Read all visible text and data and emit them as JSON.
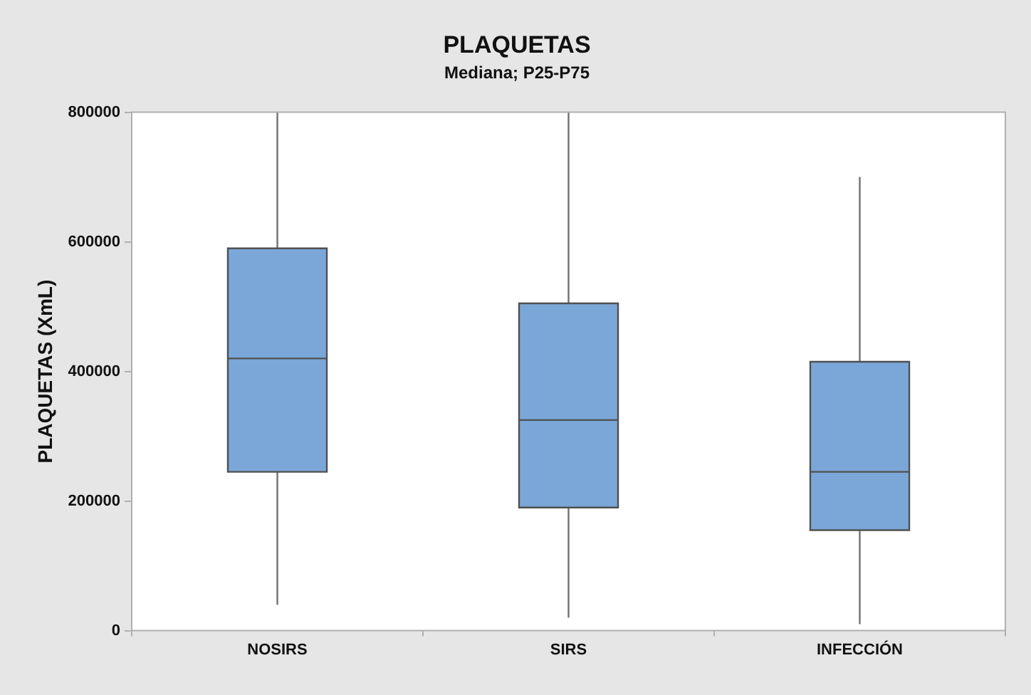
{
  "chart_data": {
    "type": "box",
    "title": "PLAQUETAS",
    "subtitle": "Mediana; P25-P75",
    "ylabel": "PLAQUETAS (XmL)",
    "categories": [
      "NOSIRS",
      "SIRS",
      "INFECCIÓN"
    ],
    "boxes": [
      {
        "low": 40000,
        "q1": 245000,
        "median": 420000,
        "q3": 590000,
        "high": 800000
      },
      {
        "low": 20000,
        "q1": 190000,
        "median": 325000,
        "q3": 505000,
        "high": 800000
      },
      {
        "low": 10000,
        "q1": 155000,
        "median": 245000,
        "q3": 415000,
        "high": 700000
      }
    ],
    "color": "#7ba7d8",
    "ylim": [
      0,
      800000
    ],
    "yticks": [
      0,
      200000,
      400000,
      600000,
      800000
    ],
    "grid": false
  }
}
